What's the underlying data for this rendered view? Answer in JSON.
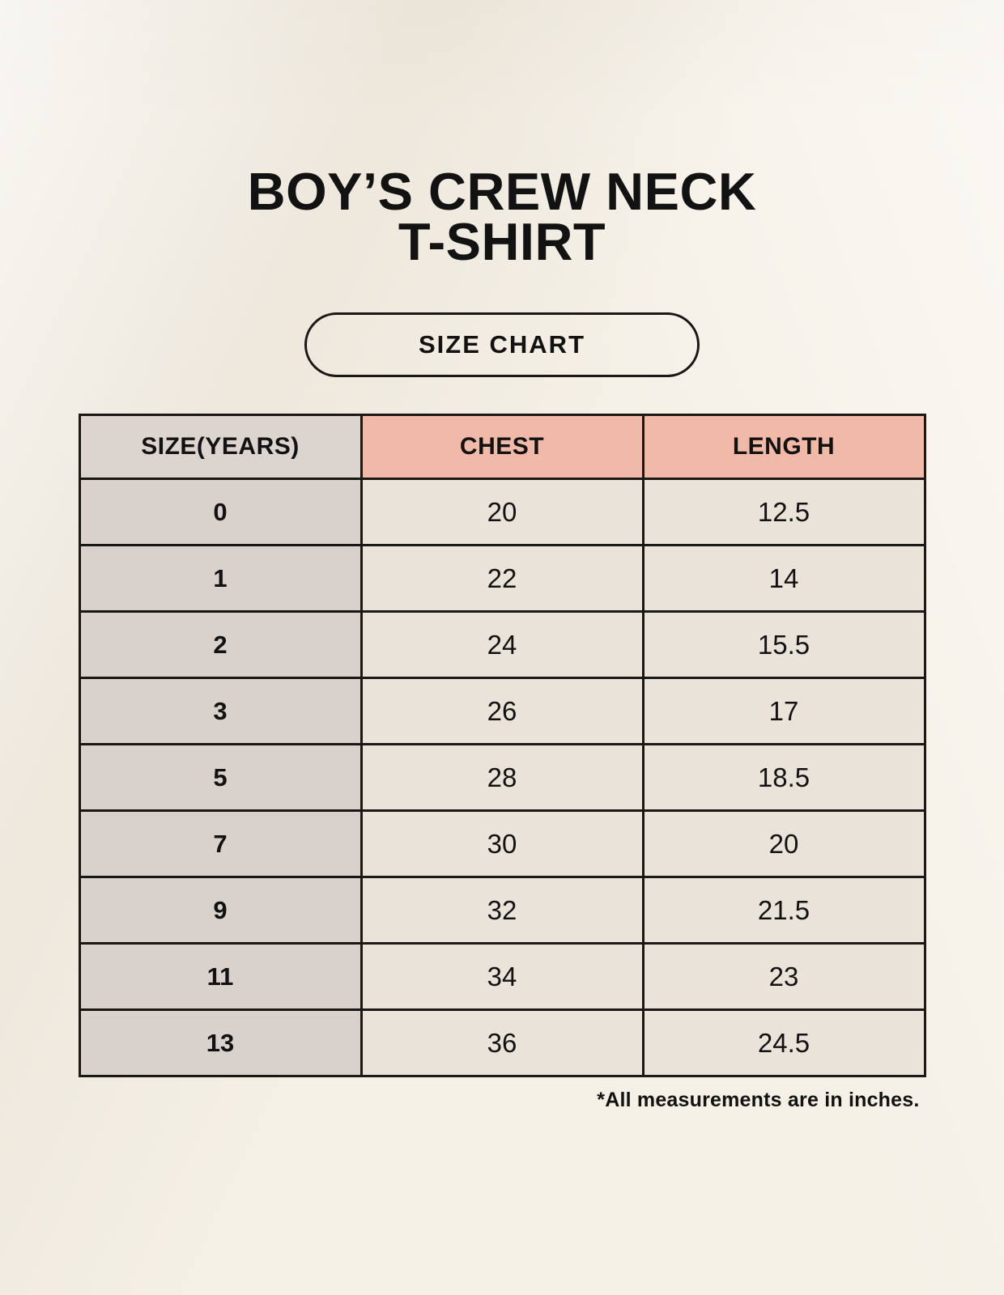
{
  "page": {
    "title_line1": "BOY’S CREW NECK",
    "title_line2": "T-SHIRT",
    "badge_label": "SIZE CHART"
  },
  "colors": {
    "background": "#f5f0e6",
    "header_accent_pink": "#f1b9a8",
    "size_column_gray": "#d9d2cc",
    "cell_cream": "#eae3d9",
    "border_black": "#1a1816",
    "text": "#121212"
  },
  "chart_data": {
    "type": "table",
    "title": "BOY’S CREW NECK T-SHIRT",
    "subtitle": "SIZE CHART",
    "columns": [
      "SIZE(YEARS)",
      "CHEST",
      "LENGTH"
    ],
    "rows": [
      [
        0,
        20,
        12.5
      ],
      [
        1,
        22,
        14
      ],
      [
        2,
        24,
        15.5
      ],
      [
        3,
        26,
        17
      ],
      [
        5,
        28,
        18.5
      ],
      [
        7,
        30,
        20
      ],
      [
        9,
        32,
        21.5
      ],
      [
        11,
        34,
        23
      ],
      [
        13,
        36,
        24.5
      ]
    ],
    "units": "inches",
    "note": "*All measurements are in inches."
  }
}
